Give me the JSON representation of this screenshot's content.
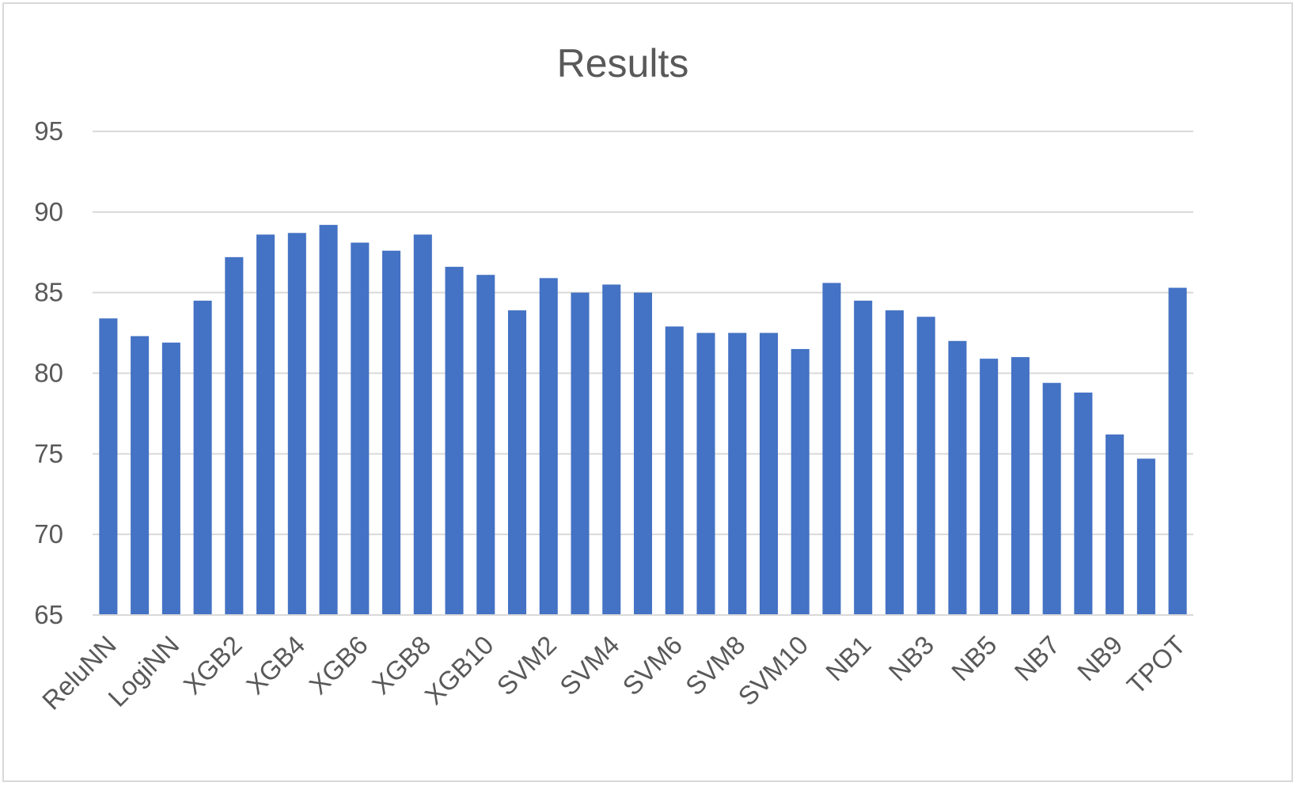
{
  "chart_data": {
    "type": "bar",
    "title": "Results",
    "xlabel": "",
    "ylabel": "",
    "ylim": [
      65,
      95
    ],
    "yticks": [
      65,
      70,
      75,
      80,
      85,
      90,
      95
    ],
    "grid": true,
    "legend": "none",
    "bar_color": "#4472c4",
    "categories": [
      "ReluNN",
      "",
      "LogiNN",
      "",
      "XGB2",
      "",
      "XGB4",
      "",
      "XGB6",
      "",
      "XGB8",
      "",
      "XGB10",
      "",
      "SVM2",
      "",
      "SVM4",
      "",
      "SVM6",
      "",
      "SVM8",
      "",
      "SVM10",
      "",
      "NB1",
      "",
      "NB3",
      "",
      "NB5",
      "",
      "NB7",
      "",
      "NB9",
      "",
      "TPOT"
    ],
    "values": [
      83.4,
      82.3,
      81.9,
      84.5,
      87.2,
      88.6,
      88.7,
      89.2,
      88.1,
      87.6,
      88.6,
      86.6,
      86.1,
      83.9,
      85.9,
      85.0,
      85.5,
      85.0,
      82.9,
      82.5,
      82.5,
      82.5,
      81.5,
      85.6,
      84.5,
      83.9,
      83.5,
      82.0,
      80.9,
      81.0,
      79.4,
      78.8,
      76.2,
      74.7,
      85.3
    ]
  }
}
